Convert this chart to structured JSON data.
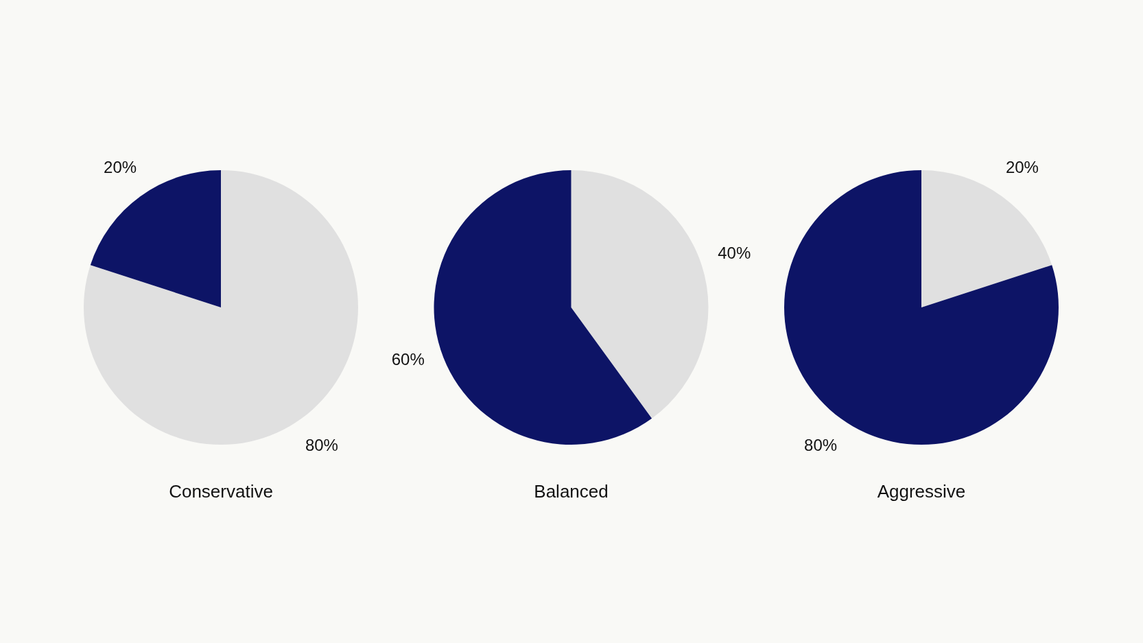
{
  "chart_data": [
    {
      "type": "pie",
      "title": "Conservative",
      "categories": [
        null,
        null
      ],
      "values": [
        80,
        20
      ],
      "colors": [
        "#e0e0e0",
        "#0d1466"
      ],
      "value_labels": [
        "80%",
        "20%"
      ]
    },
    {
      "type": "pie",
      "title": "Balanced",
      "categories": [
        null,
        null
      ],
      "values": [
        40,
        60
      ],
      "colors": [
        "#e0e0e0",
        "#0d1466"
      ],
      "value_labels": [
        "40%",
        "60%"
      ]
    },
    {
      "type": "pie",
      "title": "Aggressive",
      "categories": [
        null,
        null
      ],
      "values": [
        20,
        80
      ],
      "colors": [
        "#e0e0e0",
        "#0d1466"
      ],
      "value_labels": [
        "20%",
        "80%"
      ]
    }
  ]
}
